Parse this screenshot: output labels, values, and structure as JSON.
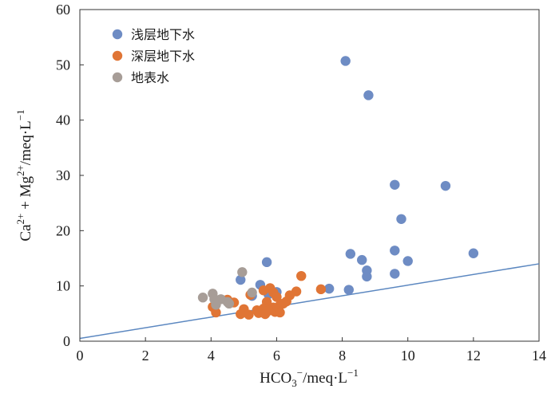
{
  "chart_data": {
    "type": "scatter",
    "xlabel": {
      "base": "HCO",
      "sub": "3",
      "sup": "−",
      "rest": "/meq·L",
      "unit_sup": "−1"
    },
    "ylabel": {
      "a": "Ca",
      "a_sup": "2+",
      "mid": " + Mg",
      "b_sup": "2+",
      "rest": "/meq·L",
      "unit_sup": "−1"
    },
    "xlim": [
      0,
      14
    ],
    "ylim": [
      0,
      60
    ],
    "xticks": [
      0,
      2,
      4,
      6,
      8,
      10,
      12,
      14
    ],
    "yticks": [
      0,
      10,
      20,
      30,
      40,
      50,
      60
    ],
    "grid": false,
    "legend_position": "top-left",
    "reference_line": {
      "x": [
        0,
        14
      ],
      "y": [
        0.5,
        14
      ],
      "color": "#5b87c0"
    },
    "series": [
      {
        "name": "浅层地下水",
        "color": "#6e8cc4",
        "points": [
          [
            8.1,
            50.7
          ],
          [
            8.8,
            44.5
          ],
          [
            9.6,
            28.3
          ],
          [
            11.15,
            28.1
          ],
          [
            9.8,
            22.1
          ],
          [
            12.0,
            15.9
          ],
          [
            8.25,
            15.8
          ],
          [
            9.6,
            16.4
          ],
          [
            8.6,
            14.7
          ],
          [
            10.0,
            14.5
          ],
          [
            5.7,
            14.3
          ],
          [
            8.75,
            12.8
          ],
          [
            8.75,
            11.7
          ],
          [
            9.6,
            12.2
          ],
          [
            4.9,
            11.1
          ],
          [
            5.5,
            10.2
          ],
          [
            7.6,
            9.5
          ],
          [
            8.2,
            9.3
          ],
          [
            5.25,
            8.2
          ],
          [
            5.75,
            8.5
          ],
          [
            6.0,
            8.9
          ]
        ]
      },
      {
        "name": "深层地下水",
        "color": "#e07535",
        "points": [
          [
            6.75,
            11.8
          ],
          [
            5.8,
            9.6
          ],
          [
            5.9,
            8.8
          ],
          [
            5.6,
            9.2
          ],
          [
            5.2,
            8.4
          ],
          [
            6.6,
            9.0
          ],
          [
            7.35,
            9.4
          ],
          [
            6.4,
            8.3
          ],
          [
            6.0,
            8.0
          ],
          [
            5.7,
            7.1
          ],
          [
            6.3,
            7.2
          ],
          [
            6.1,
            6.5
          ],
          [
            4.7,
            7.0
          ],
          [
            4.5,
            7.5
          ],
          [
            5.0,
            5.8
          ],
          [
            5.4,
            5.6
          ],
          [
            5.6,
            5.9
          ],
          [
            5.9,
            6.1
          ],
          [
            4.9,
            4.9
          ],
          [
            5.15,
            4.8
          ],
          [
            5.45,
            5.1
          ],
          [
            5.65,
            4.9
          ],
          [
            5.95,
            5.3
          ],
          [
            6.1,
            5.2
          ],
          [
            4.05,
            6.2
          ],
          [
            4.15,
            5.2
          ],
          [
            5.75,
            5.5
          ],
          [
            6.2,
            6.8
          ]
        ]
      },
      {
        "name": "地表水",
        "color": "#a79d97",
        "points": [
          [
            4.95,
            12.5
          ],
          [
            3.75,
            7.9
          ],
          [
            4.05,
            8.6
          ],
          [
            4.1,
            7.6
          ],
          [
            4.3,
            7.6
          ],
          [
            4.5,
            7.1
          ],
          [
            4.55,
            6.8
          ],
          [
            4.15,
            6.6
          ],
          [
            5.25,
            8.8
          ]
        ]
      }
    ]
  }
}
